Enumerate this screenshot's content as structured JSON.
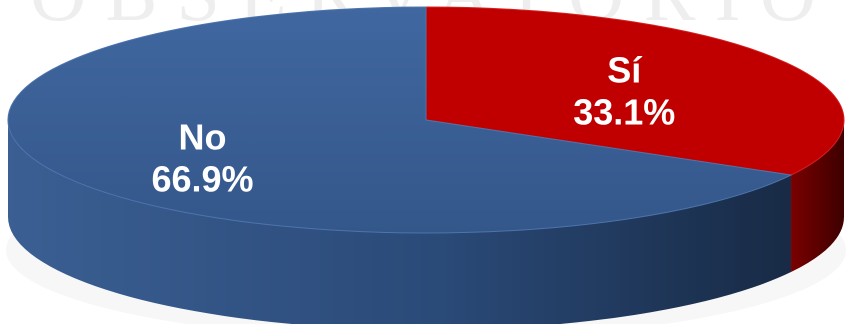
{
  "watermark": "OBSERVATORIO",
  "chart_data": {
    "type": "pie",
    "style": "3d",
    "slices": [
      {
        "label": "Sí",
        "value": 33.1,
        "value_label": "33.1%",
        "color": "#c00000",
        "side_color": "#5a0000"
      },
      {
        "label": "No",
        "value": 66.9,
        "value_label": "66.9%",
        "color": "#3a5f95",
        "side_color": "#1e3352"
      }
    ]
  }
}
